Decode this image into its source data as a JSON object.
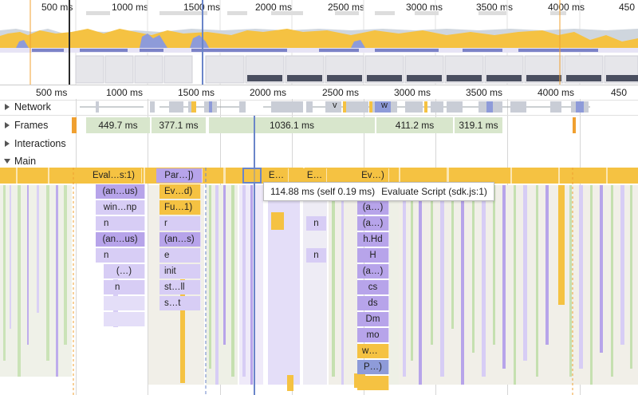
{
  "overview": {
    "ticks": [
      "500 ms",
      "1000 ms",
      "1500 ms",
      "2000 ms",
      "2500 ms",
      "3000 ms",
      "3500 ms",
      "4000 ms",
      "450"
    ]
  },
  "timeline": {
    "ticks": [
      "500 ms",
      "1000 ms",
      "1500 ms",
      "2000 ms",
      "2500 ms",
      "3000 ms",
      "3500 ms",
      "4000 ms",
      "450"
    ]
  },
  "tracks": {
    "network": "Network",
    "frames": "Frames",
    "interactions": "Interactions",
    "main": "Main"
  },
  "network_labels": {
    "v": "v",
    "w": "w"
  },
  "frames": [
    "449.7 ms",
    "377.1 ms",
    "1036.1 ms",
    "411.2 ms",
    "319.1 ms"
  ],
  "flame": {
    "row0": [
      "Eval…s:1)",
      "Par…])",
      "E…",
      "E…",
      "Ev…)"
    ],
    "col_a": [
      "(an…us)",
      "win…np",
      "n",
      "(an…us)",
      "n",
      "(…)",
      "n"
    ],
    "col_b": [
      "Ev…d)",
      "Fu…1)",
      "r",
      "(an…s)",
      "e",
      "init",
      "st…ll",
      "s…t"
    ],
    "col_n": [
      "n",
      "n"
    ],
    "col_c": [
      "(a…)",
      "(a…)",
      "h.Hd",
      "H",
      "(a…)",
      "cs",
      "ds",
      "Dm",
      "mo",
      "w…",
      "P…)"
    ]
  },
  "tooltip": {
    "time": "114.88 ms (self 0.19 ms)",
    "title": "Evaluate Script (sdk.js:1)"
  },
  "colors": {
    "script": "#f5c242",
    "render": "#b7a4ea",
    "paint": "#a8d08d",
    "selection": "#6a85c9",
    "frame": "#d8e6cc"
  }
}
